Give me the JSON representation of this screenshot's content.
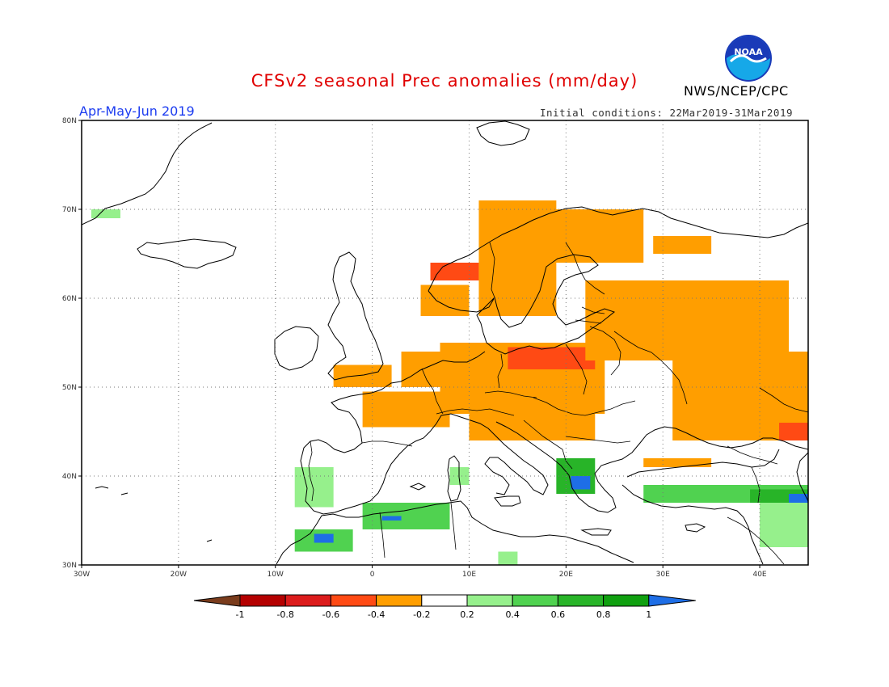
{
  "header": {
    "title": "CFSv2 seasonal Prec anomalies (mm/day)",
    "period": "Apr-May-Jun 2019",
    "initial_conditions": "Initial conditions: 22Mar2019-31Mar2019",
    "agency": "NWS/NCEP/CPC",
    "logo_text": "NOAA"
  },
  "map": {
    "lon_range": [
      -30,
      45
    ],
    "lat_range": [
      30,
      80
    ],
    "x_ticks": [
      "30W",
      "20W",
      "10W",
      "0",
      "10E",
      "20E",
      "30E",
      "40E"
    ],
    "y_ticks": [
      "30N",
      "40N",
      "50N",
      "60N",
      "70N",
      "80N"
    ],
    "gridlines": "dotted",
    "anomaly_regions": [
      {
        "lon": [
          3,
          10
        ],
        "lat": [
          50,
          54
        ],
        "value": -0.3
      },
      {
        "lon": [
          7,
          24
        ],
        "lat": [
          47,
          55
        ],
        "value": -0.3
      },
      {
        "lon": [
          14,
          23
        ],
        "lat": [
          52,
          54.5
        ],
        "value": -0.5
      },
      {
        "lon": [
          -4,
          2
        ],
        "lat": [
          50,
          52.5
        ],
        "value": -0.3
      },
      {
        "lon": [
          -1,
          8
        ],
        "lat": [
          45.5,
          49.5
        ],
        "value": -0.3
      },
      {
        "lon": [
          10,
          23
        ],
        "lat": [
          44,
          47
        ],
        "value": -0.3
      },
      {
        "lon": [
          5,
          10
        ],
        "lat": [
          58,
          61.5
        ],
        "value": -0.3
      },
      {
        "lon": [
          6,
          11
        ],
        "lat": [
          62,
          64
        ],
        "value": -0.5
      },
      {
        "lon": [
          11,
          19
        ],
        "lat": [
          58,
          71
        ],
        "value": -0.3
      },
      {
        "lon": [
          17,
          28
        ],
        "lat": [
          64,
          70
        ],
        "value": -0.3
      },
      {
        "lon": [
          22,
          43
        ],
        "lat": [
          53,
          62
        ],
        "value": -0.3
      },
      {
        "lon": [
          31,
          45
        ],
        "lat": [
          44,
          54
        ],
        "value": -0.3
      },
      {
        "lon": [
          29,
          35
        ],
        "lat": [
          65,
          67
        ],
        "value": -0.3
      },
      {
        "lon": [
          28,
          35
        ],
        "lat": [
          41,
          42
        ],
        "value": -0.3
      },
      {
        "lon": [
          42,
          45
        ],
        "lat": [
          44,
          46
        ],
        "value": -0.5
      },
      {
        "lon": [
          -8,
          -4
        ],
        "lat": [
          36.5,
          41
        ],
        "value": 0.3
      },
      {
        "lon": [
          -1,
          8
        ],
        "lat": [
          34,
          37
        ],
        "value": 0.5
      },
      {
        "lon": [
          -8,
          -2
        ],
        "lat": [
          31.5,
          34
        ],
        "value": 0.5
      },
      {
        "lon": [
          -6,
          -4
        ],
        "lat": [
          32.5,
          33.5
        ],
        "value": 1.0
      },
      {
        "lon": [
          1,
          3
        ],
        "lat": [
          35,
          35.5
        ],
        "value": 1.0
      },
      {
        "lon": [
          19,
          23
        ],
        "lat": [
          38,
          42
        ],
        "value": 0.7
      },
      {
        "lon": [
          20.5,
          22.5
        ],
        "lat": [
          38.5,
          40
        ],
        "value": 1.0
      },
      {
        "lon": [
          28,
          45
        ],
        "lat": [
          37,
          39
        ],
        "value": 0.5
      },
      {
        "lon": [
          40,
          45
        ],
        "lat": [
          32,
          37
        ],
        "value": 0.3
      },
      {
        "lon": [
          39,
          45
        ],
        "lat": [
          37,
          38.5
        ],
        "value": 0.7
      },
      {
        "lon": [
          43,
          45
        ],
        "lat": [
          37,
          38
        ],
        "value": 1.0
      },
      {
        "lon": [
          8,
          10
        ],
        "lat": [
          39,
          41
        ],
        "value": 0.3
      },
      {
        "lon": [
          13,
          15
        ],
        "lat": [
          30,
          31.5
        ],
        "value": 0.3
      },
      {
        "lon": [
          -29,
          -26
        ],
        "lat": [
          69,
          70
        ],
        "value": 0.3
      }
    ]
  },
  "colorbar": {
    "levels": [
      "-1",
      "-0.8",
      "-0.6",
      "-0.4",
      "-0.2",
      "0.2",
      "0.4",
      "0.6",
      "0.8",
      "1"
    ],
    "colors": [
      "#7a3c1c",
      "#b40000",
      "#dc1c1c",
      "#ff4a14",
      "#ff9e00",
      "#ffffff",
      "#96f08c",
      "#50d250",
      "#28b428",
      "#10a010",
      "#1e6ee6"
    ]
  }
}
